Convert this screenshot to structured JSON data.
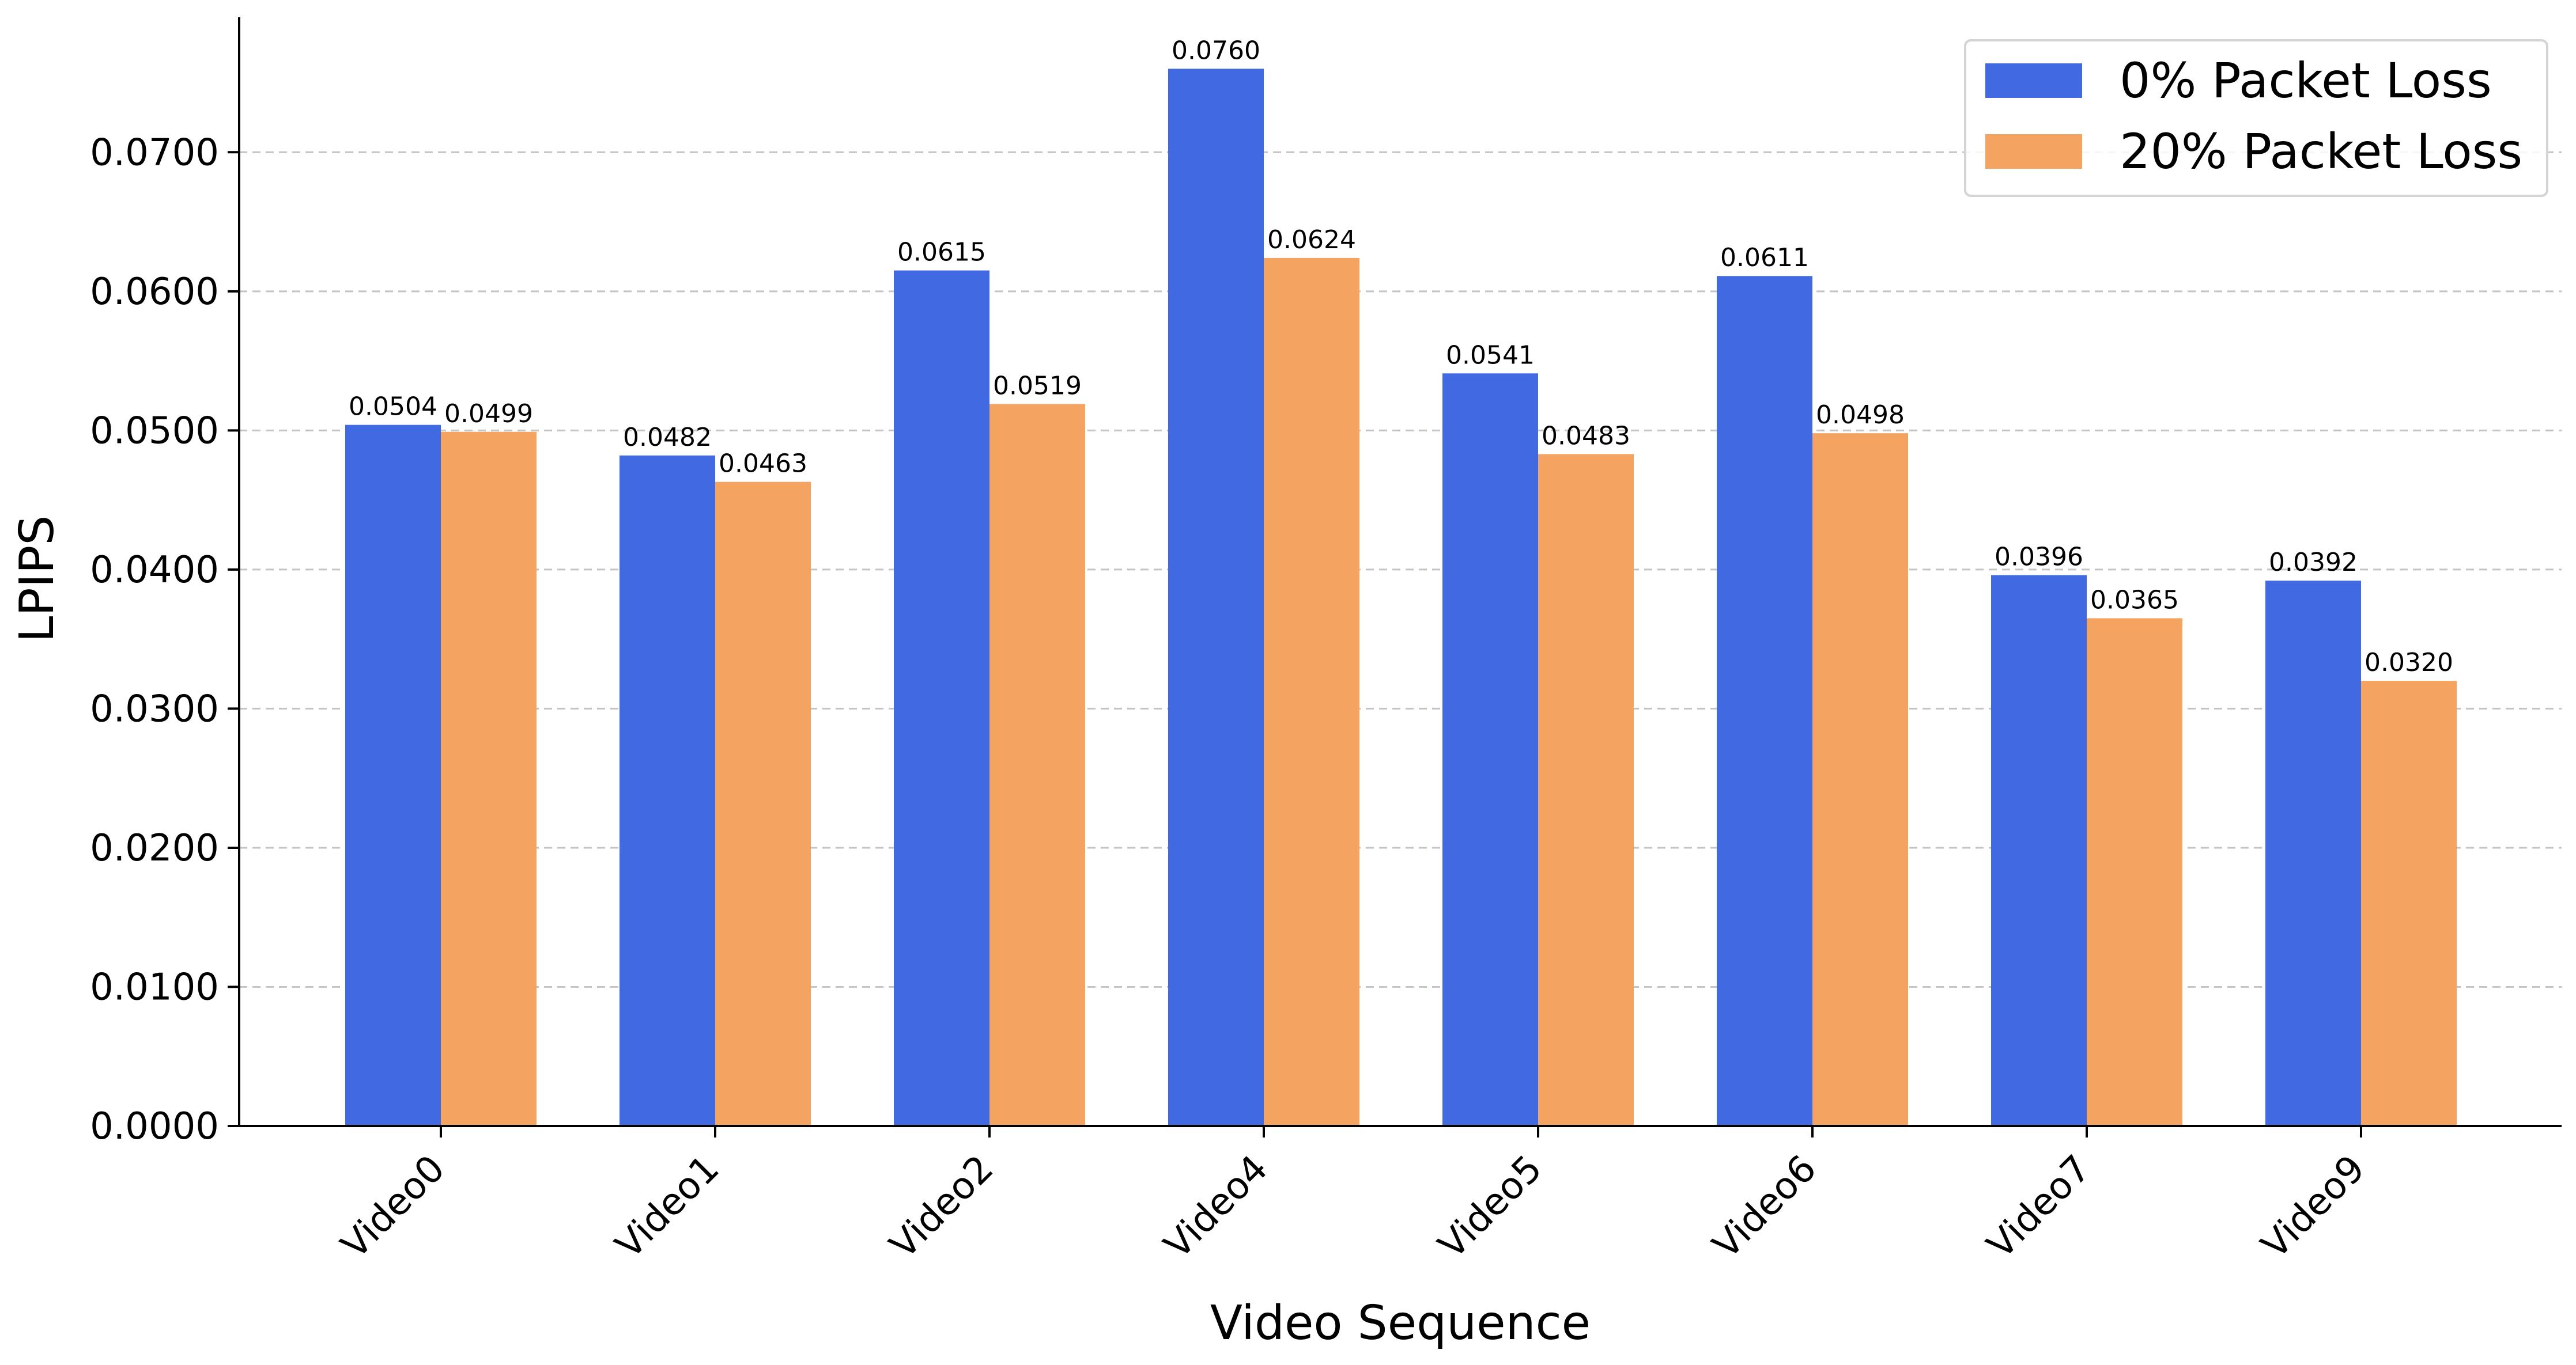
{
  "chart_data": {
    "type": "bar",
    "xlabel": "Video Sequence",
    "ylabel": "LPIPS",
    "categories": [
      "Video0",
      "Video1",
      "Video2",
      "Video4",
      "Video5",
      "Video6",
      "Video7",
      "Video9"
    ],
    "series": [
      {
        "name": "0% Packet Loss",
        "color": "#4169E1",
        "values": [
          0.0504,
          0.0482,
          0.0615,
          0.076,
          0.0541,
          0.0611,
          0.0396,
          0.0392
        ],
        "labels": [
          "0.0504",
          "0.0482",
          "0.0615",
          "0.0760",
          "0.0541",
          "0.0611",
          "0.0396",
          "0.0392"
        ]
      },
      {
        "name": "20% Packet Loss",
        "color": "#F4A460",
        "values": [
          0.0499,
          0.0463,
          0.0519,
          0.0624,
          0.0483,
          0.0498,
          0.0365,
          0.032
        ],
        "labels": [
          "0.0499",
          "0.0463",
          "0.0519",
          "0.0624",
          "0.0483",
          "0.0498",
          "0.0365",
          "0.0320"
        ]
      }
    ],
    "ylim": [
      0,
      0.0797
    ],
    "yticks": [
      0,
      0.01,
      0.02,
      0.03,
      0.04,
      0.05,
      0.06,
      0.07
    ],
    "ytick_labels": [
      "0.0000",
      "0.0100",
      "0.0200",
      "0.0300",
      "0.0400",
      "0.0500",
      "0.0600",
      "0.0700"
    ],
    "grid": "y-dashed",
    "legend_position": "top-right"
  }
}
